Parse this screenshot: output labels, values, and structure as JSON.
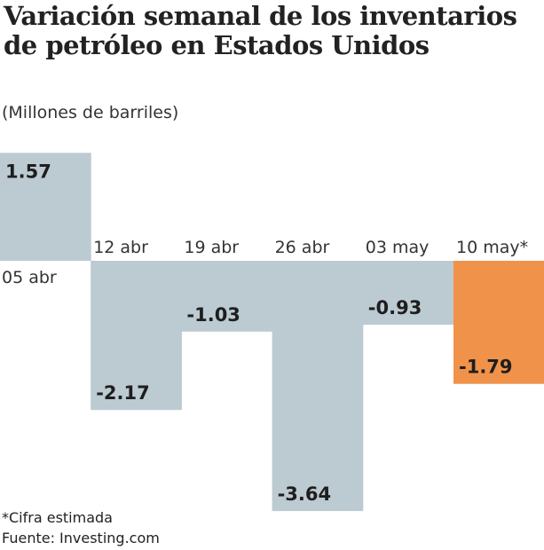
{
  "chart_data": {
    "type": "bar",
    "title": "Variación semanal de los inventarios de petróleo en Estados Unidos",
    "subtitle": "(Millones de barriles)",
    "categories": [
      "05 abr",
      "12 abr",
      "19 abr",
      "26 abr",
      "03 may",
      "10 may*"
    ],
    "values": [
      1.57,
      -2.17,
      -1.03,
      -3.64,
      -0.93,
      -1.79
    ],
    "value_labels": [
      "1.57",
      "-2.17",
      "-1.03",
      "-3.64",
      "-0.93",
      "-1.79"
    ],
    "highlight_index": 5,
    "colors": {
      "default": "#bccad1",
      "highlight": "#f0924a"
    },
    "ylim": [
      -3.64,
      1.57
    ],
    "grid": false,
    "legend": "none",
    "xlabel": "",
    "ylabel": ""
  },
  "footer": {
    "note": "*Cifra estimada",
    "source": "Fuente: Investing.com"
  }
}
